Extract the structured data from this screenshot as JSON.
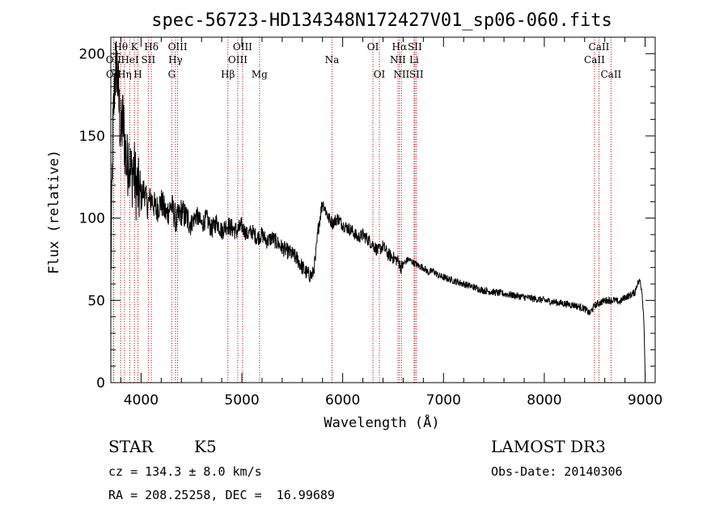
{
  "chart_data": {
    "type": "line",
    "title": "spec-56723-HD134348N172427V01_sp06-060.fits",
    "xlabel": "Wavelength (Å)",
    "ylabel": "Flux (relative)",
    "xlim": [
      3700,
      9100
    ],
    "ylim": [
      0,
      210
    ],
    "xticks": [
      4000,
      5000,
      6000,
      7000,
      8000,
      9000
    ],
    "yticks": [
      0,
      50,
      100,
      150,
      200
    ],
    "grid": false,
    "legend": "none",
    "line_color": "#000000",
    "marker_color": "#cc0000",
    "series": [
      {
        "x": [
          3700,
          3720,
          3740,
          3760,
          3780,
          3800,
          3820,
          3840,
          3860,
          3880,
          3900,
          3925,
          3950,
          3975,
          4000,
          4030,
          4060,
          4100,
          4150,
          4200,
          4250,
          4300,
          4350,
          4400,
          4450,
          4500,
          4550,
          4600,
          4650,
          4700,
          4750,
          4800,
          4850,
          4900,
          4950,
          5000,
          5050,
          5100,
          5150,
          5200,
          5250,
          5300,
          5350,
          5400,
          5450,
          5500,
          5550,
          5600,
          5650,
          5700,
          5730,
          5760,
          5800,
          5830,
          5860,
          5900,
          5950,
          6000,
          6050,
          6100,
          6150,
          6200,
          6250,
          6300,
          6350,
          6400,
          6450,
          6500,
          6550,
          6580,
          6600,
          6650,
          6700,
          6750,
          6800,
          6850,
          6900,
          6950,
          7000,
          7050,
          7100,
          7150,
          7200,
          7300,
          7400,
          7500,
          7600,
          7700,
          7800,
          7900,
          8000,
          8100,
          8200,
          8300,
          8400,
          8450,
          8500,
          8600,
          8700,
          8750,
          8800,
          8850,
          8900,
          8920,
          8950,
          8970,
          8990,
          9000
        ],
        "y": [
          65,
          150,
          185,
          195,
          170,
          150,
          160,
          145,
          130,
          140,
          125,
          130,
          120,
          115,
          112,
          118,
          108,
          112,
          105,
          110,
          102,
          108,
          98,
          104,
          100,
          97,
          102,
          96,
          100,
          93,
          98,
          92,
          96,
          94,
          92,
          95,
          90,
          92,
          88,
          90,
          86,
          88,
          85,
          82,
          80,
          78,
          75,
          70,
          66,
          65,
          75,
          95,
          110,
          105,
          100,
          97,
          100,
          96,
          94,
          92,
          88,
          90,
          87,
          84,
          80,
          83,
          78,
          76,
          74,
          70,
          72,
          75,
          73,
          71,
          70,
          67,
          68,
          65,
          64,
          63,
          62,
          61,
          60,
          58,
          56,
          55,
          54,
          53,
          52,
          51,
          50,
          49,
          48,
          47,
          45,
          42,
          47,
          50,
          50,
          49,
          52,
          53,
          55,
          60,
          62,
          55,
          35,
          5
        ]
      }
    ],
    "spectral_lines": [
      {
        "label": "OII",
        "wavelength": 3727,
        "row": 2
      },
      {
        "label": "OII",
        "wavelength": 3729,
        "row": 3
      },
      {
        "label": "Hθ",
        "wavelength": 3798,
        "row": 1
      },
      {
        "label": "Hη",
        "wavelength": 3835,
        "row": 3
      },
      {
        "label": "HeI",
        "wavelength": 3889,
        "row": 2
      },
      {
        "label": "K",
        "wavelength": 3934,
        "row": 1
      },
      {
        "label": "SII",
        "wavelength": 4072,
        "row": 2
      },
      {
        "label": "H",
        "wavelength": 3969,
        "row": 3
      },
      {
        "label": "Hδ",
        "wavelength": 4102,
        "row": 1
      },
      {
        "label": "G",
        "wavelength": 4305,
        "row": 3
      },
      {
        "label": "Hγ",
        "wavelength": 4341,
        "row": 2
      },
      {
        "label": "OIII",
        "wavelength": 4363,
        "row": 1
      },
      {
        "label": "Hβ",
        "wavelength": 4861,
        "row": 3
      },
      {
        "label": "OIII",
        "wavelength": 4959,
        "row": 2
      },
      {
        "label": "OIII",
        "wavelength": 5007,
        "row": 1
      },
      {
        "label": "Mg",
        "wavelength": 5175,
        "row": 3
      },
      {
        "label": "Na",
        "wavelength": 5894,
        "row": 2
      },
      {
        "label": "OI",
        "wavelength": 6300,
        "row": 1
      },
      {
        "label": "OI",
        "wavelength": 6364,
        "row": 3
      },
      {
        "label": "NII",
        "wavelength": 6548,
        "row": 2
      },
      {
        "label": "NII",
        "wavelength": 6583,
        "row": 3
      },
      {
        "label": "Hα",
        "wavelength": 6563,
        "row": 1
      },
      {
        "label": "SII",
        "wavelength": 6716,
        "row": 1
      },
      {
        "label": "Li",
        "wavelength": 6708,
        "row": 2
      },
      {
        "label": "SII",
        "wavelength": 6731,
        "row": 3
      },
      {
        "label": "CaII",
        "wavelength": 8498,
        "row": 2
      },
      {
        "label": "CaII",
        "wavelength": 8542,
        "row": 1
      },
      {
        "label": "CaII",
        "wavelength": 8662,
        "row": 3
      }
    ]
  },
  "info": {
    "class": "STAR",
    "subclass": "K5",
    "survey": "LAMOST DR3",
    "cz": "cz = 134.3 ± 8.0 km/s",
    "obs_date": "Obs-Date: 20140306",
    "coords": "RA = 208.25258, DEC =  16.99689"
  }
}
